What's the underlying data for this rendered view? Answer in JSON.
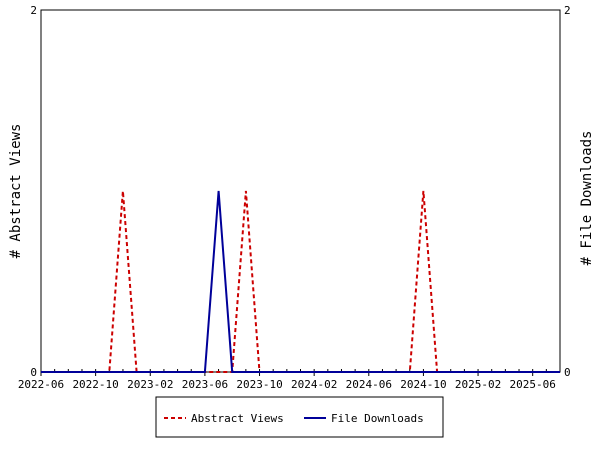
{
  "chart_data": {
    "type": "line",
    "title": "",
    "y_left_label": "# Abstract Views",
    "y_right_label": "# File Downloads",
    "x_range": [
      "2022-06",
      "2025-08"
    ],
    "y_left_range": [
      0,
      2
    ],
    "y_right_range": [
      0,
      2
    ],
    "y_left_ticks": [
      "0",
      "2"
    ],
    "y_right_ticks": [
      "0",
      "2"
    ],
    "x_tick_labels": [
      "2022-06",
      "2022-10",
      "2023-02",
      "2023-06",
      "2023-10",
      "2024-02",
      "2024-06",
      "2024-10",
      "2025-02",
      "2025-06"
    ],
    "grid": false,
    "legend_position": "bottom",
    "series": [
      {
        "name": "Abstract Views",
        "axis": "left",
        "style": "dashed",
        "color": "#cc0000",
        "points": [
          [
            "2022-06",
            0
          ],
          [
            "2022-11",
            0
          ],
          [
            "2022-12",
            1
          ],
          [
            "2023-01",
            0
          ],
          [
            "2023-08",
            0
          ],
          [
            "2023-09",
            1
          ],
          [
            "2023-10",
            0
          ],
          [
            "2024-09",
            0
          ],
          [
            "2024-10",
            1
          ],
          [
            "2024-11",
            0
          ],
          [
            "2025-08",
            0
          ]
        ]
      },
      {
        "name": "File Downloads",
        "axis": "right",
        "style": "solid",
        "color": "#000099",
        "points": [
          [
            "2022-06",
            0
          ],
          [
            "2023-06",
            0
          ],
          [
            "2023-07",
            1
          ],
          [
            "2023-08",
            0
          ],
          [
            "2025-08",
            0
          ]
        ]
      }
    ]
  }
}
